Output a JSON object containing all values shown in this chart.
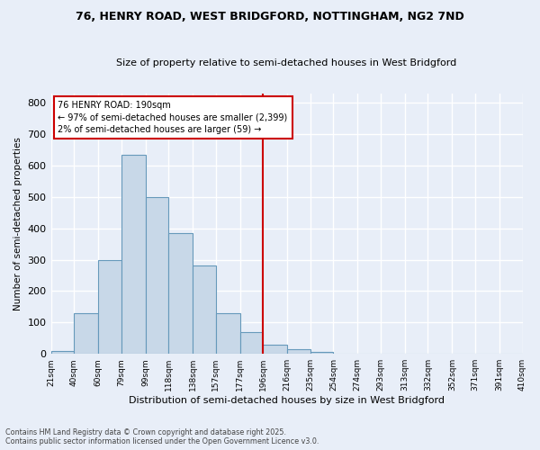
{
  "title_line1": "76, HENRY ROAD, WEST BRIDGFORD, NOTTINGHAM, NG2 7ND",
  "title_line2": "Size of property relative to semi-detached houses in West Bridgford",
  "xlabel": "Distribution of semi-detached houses by size in West Bridgford",
  "ylabel": "Number of semi-detached properties",
  "annotation_title": "76 HENRY ROAD: 190sqm",
  "annotation_line1": "← 97% of semi-detached houses are smaller (2,399)",
  "annotation_line2": "2% of semi-detached houses are larger (59) →",
  "vline_x": 196,
  "bar_edges": [
    21,
    40,
    60,
    79,
    99,
    118,
    138,
    157,
    177,
    196,
    216,
    235,
    254,
    274,
    293,
    313,
    332,
    352,
    371,
    391,
    410
  ],
  "bar_heights": [
    10,
    130,
    300,
    635,
    500,
    385,
    280,
    130,
    70,
    30,
    15,
    5,
    2,
    1,
    0,
    0,
    0,
    0,
    0,
    0
  ],
  "bar_color": "#c8d8e8",
  "bar_edge_color": "#6699bb",
  "vline_color": "#cc0000",
  "box_edge_color": "#cc0000",
  "ylim": [
    0,
    830
  ],
  "yticks": [
    0,
    100,
    200,
    300,
    400,
    500,
    600,
    700,
    800
  ],
  "background_color": "#e8eef8",
  "grid_color": "#ffffff",
  "footer": "Contains HM Land Registry data © Crown copyright and database right 2025.\nContains public sector information licensed under the Open Government Licence v3.0.",
  "tick_labels": [
    "21sqm",
    "40sqm",
    "60sqm",
    "79sqm",
    "99sqm",
    "118sqm",
    "138sqm",
    "157sqm",
    "177sqm",
    "196sqm",
    "216sqm",
    "235sqm",
    "254sqm",
    "274sqm",
    "293sqm",
    "313sqm",
    "332sqm",
    "352sqm",
    "371sqm",
    "391sqm",
    "410sqm"
  ]
}
